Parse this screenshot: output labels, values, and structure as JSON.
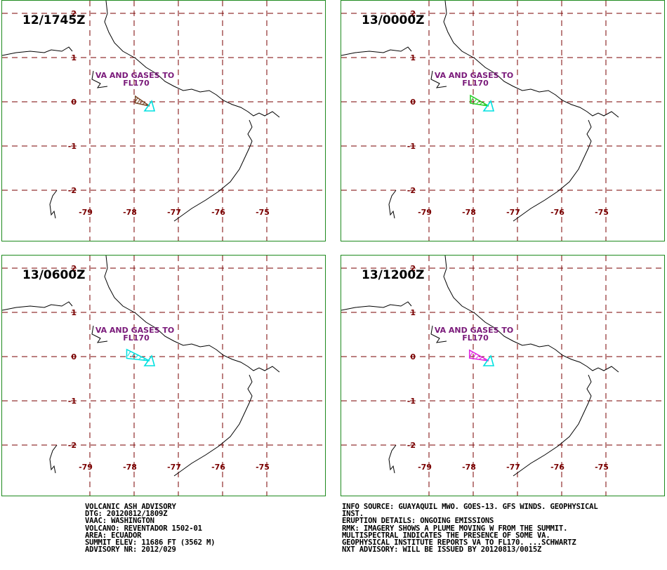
{
  "map": {
    "lon_ticks": [
      "-79",
      "-78",
      "-77",
      "-76",
      "-75"
    ],
    "lat_ticks": [
      "2",
      "1",
      "0",
      "-1",
      "-2"
    ],
    "va_label_line1": "VA AND GASES TO",
    "va_label_line2": "FL170",
    "colors": {
      "border": "#1e8a1e",
      "grid": "#7a0000",
      "coast": "#000000",
      "volcano": "#00e0e0",
      "va_label": "#7a1a7a"
    }
  },
  "panels": [
    {
      "time": "12/1745Z",
      "plume_color": "#7a4a2a",
      "plume_scale": 0.78
    },
    {
      "time": "13/0000Z",
      "plume_color": "#22cc22",
      "plume_scale": 1.0
    },
    {
      "time": "13/0600Z",
      "plume_color": "#00e0e0",
      "plume_scale": 1.25
    },
    {
      "time": "13/1200Z",
      "plume_color": "#e020e0",
      "plume_scale": 1.05
    }
  ],
  "advisory_left": {
    "line1": "VOLCANIC ASH ADVISORY",
    "line2": "DTG: 20120812/1809Z",
    "line3": "VAAC: WASHINGTON",
    "line4": "VOLCANO: REVENTADOR 1502-01",
    "line5": "AREA: ECUADOR",
    "line6": "SUMMIT ELEV: 11686 FT (3562 M)",
    "line7": "ADVISORY NR: 2012/029"
  },
  "advisory_right": {
    "line1": "INFO SOURCE: GUAYAQUIL MWO. GOES-13. GFS WINDS. GEOPHYSICAL",
    "line2": "INST.",
    "line3": "ERUPTION DETAILS: ONGOING EMISSIONS",
    "line4": "RMK: IMAGERY SHOWS A PLUME MOVING W FROM THE SUMMIT.",
    "line5": "MULTISPECTRAL INDICATES THE PRESENCE OF SOME VA.",
    "line6": "GEOPHYSICAL INSTITUTE REPORTS VA TO FL170. ...SCHWARTZ",
    "line7": "NXT ADVISORY: WILL BE ISSUED BY 20120813/0015Z"
  }
}
